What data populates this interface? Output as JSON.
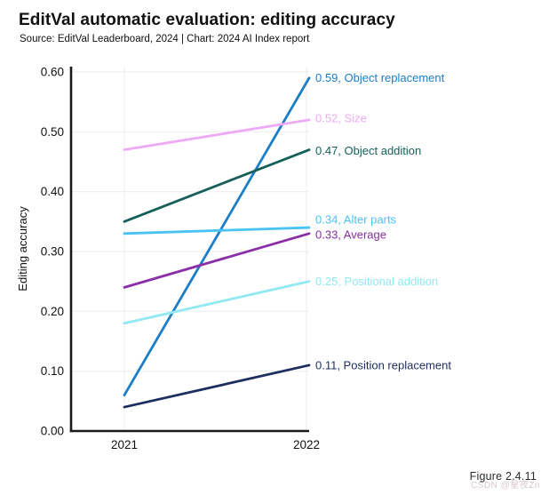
{
  "header": {
    "title": "EditVal automatic evaluation: editing accuracy",
    "subtitle": "Source: EditVal Leaderboard, 2024 | Chart: 2024 AI Index report"
  },
  "footer": {
    "figure_label": "Figure 2.4.11",
    "watermark": "CSDN @星夜Zn"
  },
  "chart_data": {
    "type": "line",
    "title": "EditVal automatic evaluation: editing accuracy",
    "xlabel": "",
    "ylabel": "Editing accuracy",
    "x": [
      2021,
      2022
    ],
    "xtick_labels": [
      "2021",
      "2022"
    ],
    "ylim": [
      0,
      0.6
    ],
    "yticks": [
      0,
      0.1,
      0.2,
      0.3,
      0.4,
      0.5,
      0.6
    ],
    "ytick_labels": [
      "0.00",
      "0.10",
      "0.20",
      "0.30",
      "0.40",
      "0.50",
      "0.60"
    ],
    "grid": true,
    "legend_position": "right-end-labels",
    "colors": {
      "axis": "#1a1a1a",
      "grid": "#efefef",
      "tick_text": "#111111"
    },
    "series": [
      {
        "name": "Object replacement",
        "values": [
          0.06,
          0.59
        ],
        "color": "#1b7ec7",
        "label": "0.59, Object replacement",
        "label_dy": 0
      },
      {
        "name": "Size",
        "values": [
          0.47,
          0.52
        ],
        "color": "#edaaf5",
        "label": "0.52, Size",
        "label_dy": -2
      },
      {
        "name": "Object addition",
        "values": [
          0.35,
          0.47
        ],
        "color": "#15605a",
        "label": "0.47, Object addition",
        "label_dy": 1
      },
      {
        "name": "Alter parts",
        "values": [
          0.33,
          0.34
        ],
        "color": "#49c3f2",
        "label": "0.34, Alter parts",
        "label_dy": -9
      },
      {
        "name": "Average",
        "values": [
          0.24,
          0.33
        ],
        "color": "#8b2fa9",
        "label": "0.33, Average",
        "label_dy": 1
      },
      {
        "name": "Positional addition",
        "values": [
          0.18,
          0.25
        ],
        "color": "#92e9f1",
        "label": "0.25, Positional addition",
        "label_dy": 0
      },
      {
        "name": "Position replacement",
        "values": [
          0.04,
          0.11
        ],
        "color": "#1d2e5f",
        "label": "0.11, Position replacement",
        "label_dy": 0
      }
    ]
  }
}
